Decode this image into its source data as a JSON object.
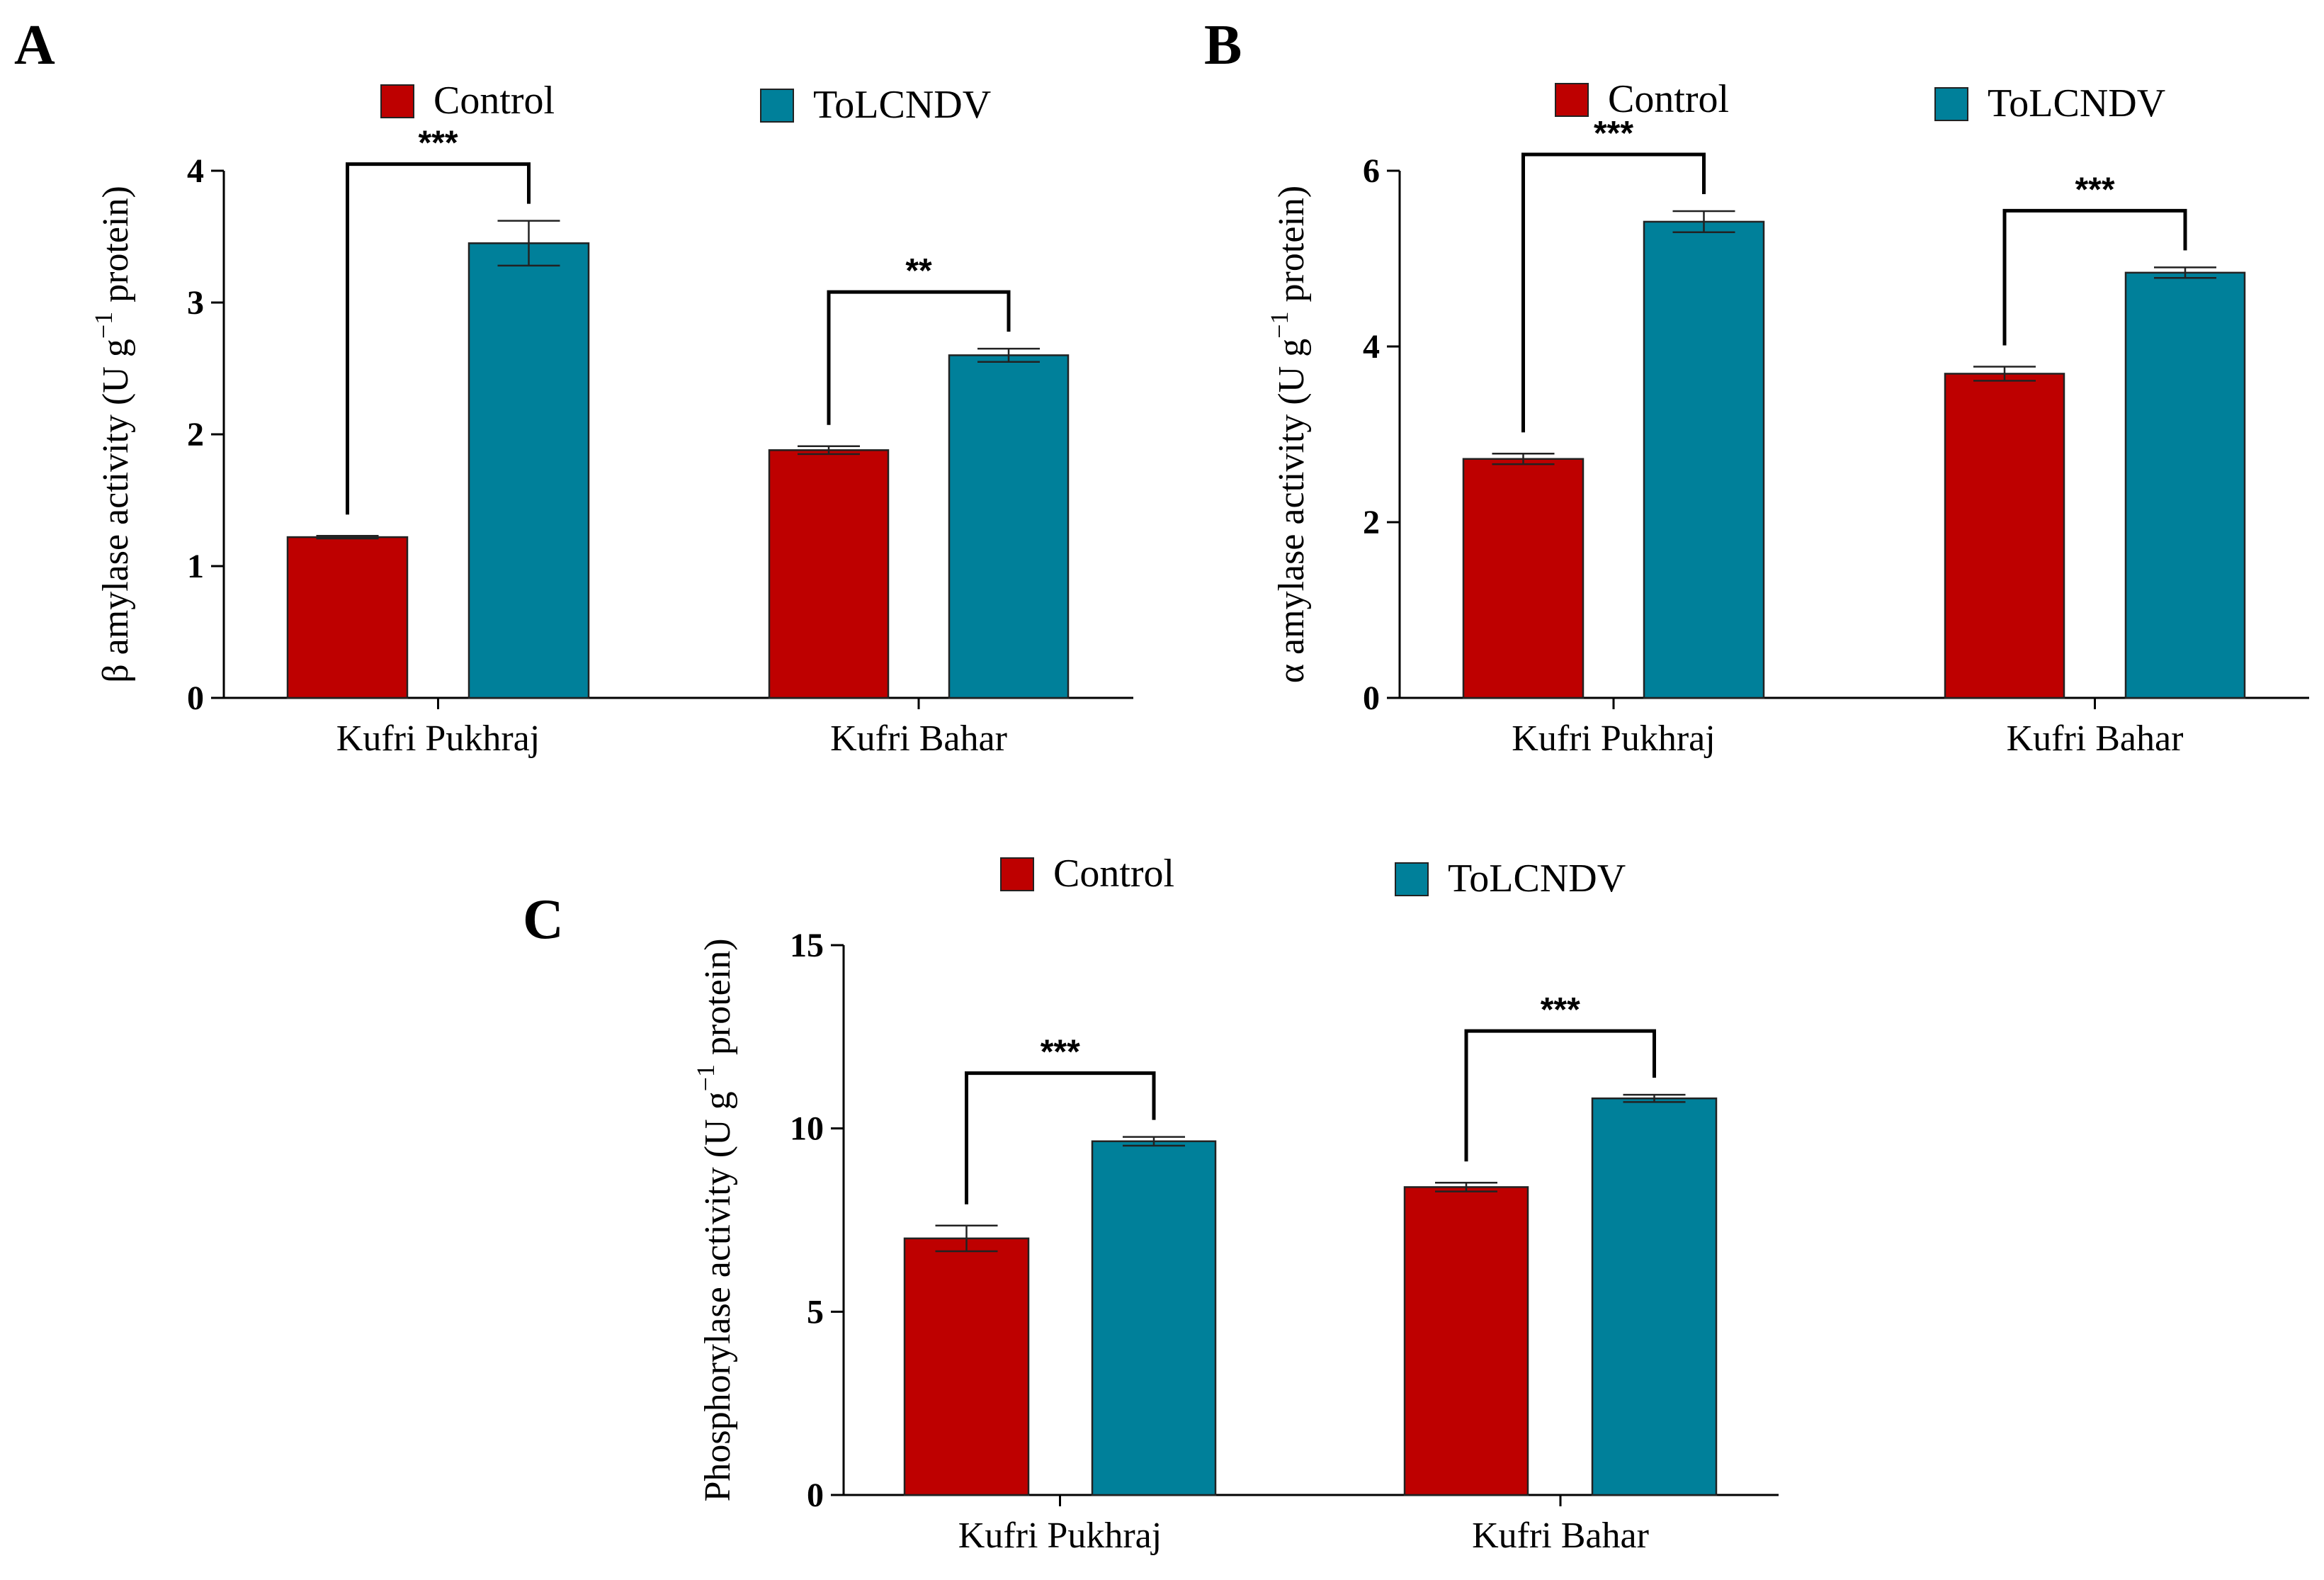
{
  "colors": {
    "control": "#BE0000",
    "tolcndv": "#00809A"
  },
  "chart_data": [
    {
      "type": "bar",
      "panel": "A",
      "ylabel_prefix": "β amylase activity (U g",
      "ylabel_sup": "−1",
      "ylabel_suffix": " protein)",
      "categories": [
        "Kufri Pukhraj",
        "Kufri Bahar"
      ],
      "series": [
        {
          "name": "Control",
          "values": [
            1.22,
            1.88
          ],
          "errors": [
            0.01,
            0.03
          ]
        },
        {
          "name": "ToLCNDV",
          "values": [
            3.45,
            2.6
          ],
          "errors": [
            0.17,
            0.05
          ]
        }
      ],
      "ylim": [
        0,
        4
      ],
      "yticks": [
        "0",
        "1",
        "2",
        "3",
        "4"
      ],
      "significance": [
        "***",
        "**"
      ],
      "legend": [
        "Control",
        "ToLCNDV"
      ]
    },
    {
      "type": "bar",
      "panel": "B",
      "ylabel_prefix": "α amylase activity (U g",
      "ylabel_sup": "−1",
      "ylabel_suffix": " protein)",
      "categories": [
        "Kufri Pukhraj",
        "Kufri Bahar"
      ],
      "series": [
        {
          "name": "Control",
          "values": [
            2.72,
            3.69
          ],
          "errors": [
            0.06,
            0.08
          ]
        },
        {
          "name": "ToLCNDV",
          "values": [
            5.42,
            4.84
          ],
          "errors": [
            0.12,
            0.06
          ]
        }
      ],
      "ylim": [
        0,
        6
      ],
      "yticks": [
        "0",
        "2",
        "4",
        "6"
      ],
      "significance": [
        "***",
        "***"
      ],
      "legend": [
        "Control",
        "ToLCNDV"
      ]
    },
    {
      "type": "bar",
      "panel": "C",
      "ylabel_prefix": "Phosphorylase activity (U g",
      "ylabel_sup": "−1",
      "ylabel_suffix": " protein)",
      "categories": [
        "Kufri Pukhraj",
        "Kufri Bahar"
      ],
      "series": [
        {
          "name": "Control",
          "values": [
            7.0,
            8.4
          ],
          "errors": [
            0.35,
            0.12
          ]
        },
        {
          "name": "ToLCNDV",
          "values": [
            9.65,
            10.82
          ],
          "errors": [
            0.12,
            0.1
          ]
        }
      ],
      "ylim": [
        0,
        15
      ],
      "yticks": [
        "0",
        "5",
        "10",
        "15"
      ],
      "significance": [
        "***",
        "***"
      ],
      "legend": [
        "Control",
        "ToLCNDV"
      ]
    }
  ]
}
